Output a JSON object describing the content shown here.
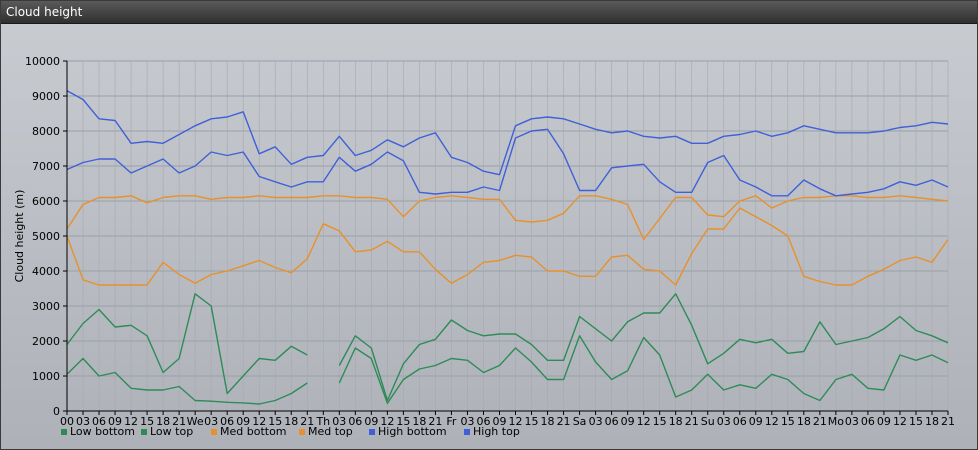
{
  "window": {
    "title": "Cloud height"
  },
  "chart_data": {
    "type": "line",
    "title": "",
    "xlabel": "",
    "ylabel": "Cloud height (m)",
    "ylim": [
      0,
      10000
    ],
    "yticks": [
      0,
      1000,
      2000,
      3000,
      4000,
      5000,
      6000,
      7000,
      8000,
      9000,
      10000
    ],
    "grid": true,
    "legend_position": "bottom-left",
    "x": [
      "00",
      "03",
      "06",
      "09",
      "12",
      "15",
      "18",
      "21",
      "We",
      "03",
      "06",
      "09",
      "12",
      "15",
      "18",
      "21",
      "Th",
      "03",
      "06",
      "09",
      "12",
      "15",
      "18",
      "21",
      "Fr",
      "03",
      "06",
      "09",
      "12",
      "15",
      "18",
      "21",
      "Sa",
      "03",
      "06",
      "09",
      "12",
      "15",
      "18",
      "21",
      "Su",
      "03",
      "06",
      "09",
      "12",
      "15",
      "18",
      "21",
      "Mo",
      "03",
      "06",
      "09",
      "12",
      "15",
      "18",
      "21"
    ],
    "series": [
      {
        "name": "Low bottom",
        "color": "#2e8b57",
        "values": [
          1050,
          1500,
          1000,
          1100,
          650,
          600,
          600,
          700,
          300,
          280,
          250,
          230,
          200,
          300,
          500,
          800,
          null,
          800,
          1800,
          1500,
          220,
          900,
          1200,
          1300,
          1500,
          1450,
          1100,
          1300,
          1800,
          1400,
          900,
          900,
          2150,
          1400,
          900,
          1150,
          2100,
          1600,
          400,
          600,
          1050,
          600,
          750,
          650,
          1050,
          900,
          500,
          300,
          900,
          1050,
          650,
          600,
          1600,
          1450,
          1600,
          1380
        ]
      },
      {
        "name": "Low top",
        "color": "#2e8b57",
        "values": [
          1900,
          2500,
          2900,
          2400,
          2450,
          2150,
          1100,
          1500,
          3350,
          3000,
          500,
          1000,
          1500,
          1450,
          1850,
          1600,
          null,
          1300,
          2150,
          1800,
          300,
          1350,
          1900,
          2050,
          2600,
          2300,
          2150,
          2200,
          2200,
          1900,
          1450,
          1450,
          2700,
          2350,
          2000,
          2550,
          2800,
          2800,
          3350,
          2450,
          1350,
          1650,
          2050,
          1950,
          2050,
          1650,
          1700,
          2550,
          1900,
          2000,
          2100,
          2350,
          2700,
          2300,
          2150,
          1950
        ]
      },
      {
        "name": "Med bottom",
        "color": "#e8902a",
        "values": [
          5000,
          3750,
          3600,
          3600,
          3600,
          3600,
          4250,
          3900,
          3650,
          3900,
          4000,
          4150,
          4300,
          4100,
          3950,
          4350,
          5350,
          5150,
          4550,
          4600,
          4850,
          4550,
          4550,
          4050,
          3650,
          3900,
          4250,
          4300,
          4450,
          4400,
          4000,
          4000,
          3850,
          3850,
          4400,
          4450,
          4050,
          4000,
          3600,
          4500,
          5200,
          5200,
          5800,
          5550,
          5300,
          5000,
          3850,
          3700,
          3600,
          3600,
          3850,
          4050,
          4300,
          4400,
          4250,
          4900
        ]
      },
      {
        "name": "Med top",
        "color": "#e8902a",
        "values": [
          5200,
          5900,
          6100,
          6100,
          6150,
          5950,
          6100,
          6150,
          6150,
          6050,
          6100,
          6100,
          6150,
          6100,
          6100,
          6100,
          6150,
          6150,
          6100,
          6100,
          6050,
          5550,
          6000,
          6100,
          6150,
          6100,
          6050,
          6050,
          5450,
          5400,
          5450,
          5650,
          6150,
          6150,
          6050,
          5900,
          4900,
          5500,
          6100,
          6100,
          5600,
          5550,
          6000,
          6150,
          5800,
          6000,
          6100,
          6100,
          6150,
          6150,
          6100,
          6100,
          6150,
          6100,
          6050,
          6000
        ]
      },
      {
        "name": "High bottom",
        "color": "#3f60d8",
        "values": [
          6900,
          7100,
          7200,
          7200,
          6800,
          7000,
          7200,
          6800,
          7000,
          7400,
          7300,
          7400,
          6700,
          6550,
          6400,
          6550,
          6550,
          7250,
          6850,
          7050,
          7400,
          7150,
          6250,
          6200,
          6250,
          6250,
          6400,
          6300,
          7800,
          8000,
          8050,
          7350,
          6300,
          6300,
          6950,
          7000,
          7050,
          6550,
          6250,
          6250,
          7100,
          7300,
          6600,
          6400,
          6150,
          6150,
          6600,
          6350,
          6150,
          6200,
          6250,
          6350,
          6550,
          6450,
          6600,
          6400
        ]
      },
      {
        "name": "High top",
        "color": "#3f60d8",
        "values": [
          9150,
          8900,
          8350,
          8300,
          7650,
          7700,
          7650,
          7900,
          8150,
          8350,
          8400,
          8550,
          7350,
          7550,
          7050,
          7250,
          7300,
          7850,
          7300,
          7450,
          7750,
          7550,
          7800,
          7950,
          7250,
          7100,
          6850,
          6750,
          8150,
          8350,
          8400,
          8350,
          8200,
          8050,
          7950,
          8000,
          7850,
          7800,
          7850,
          7650,
          7650,
          7850,
          7900,
          8000,
          7850,
          7950,
          8150,
          8050,
          7950,
          7950,
          7950,
          8000,
          8100,
          8150,
          8250,
          8200
        ]
      }
    ]
  }
}
